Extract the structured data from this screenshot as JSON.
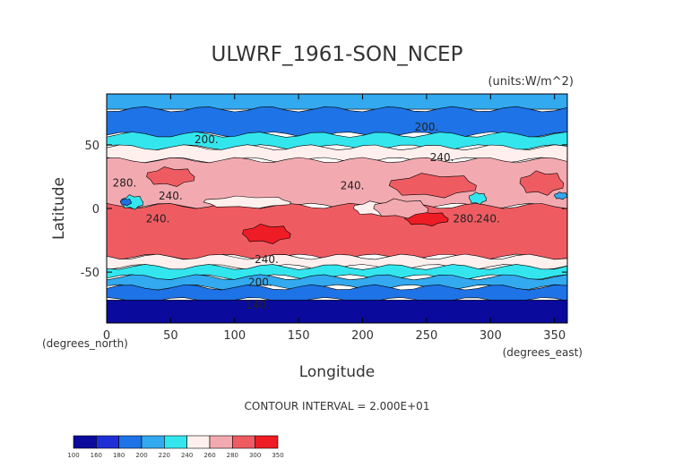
{
  "chart_data": {
    "type": "heatmap",
    "title": "ULWRF_1961-SON_NCEP",
    "units_label": "(units:W/m^2)",
    "xlabel": "Longitude",
    "ylabel": "Latitude",
    "x_unit_label": "(degrees_east)",
    "y_unit_label": "(degrees_north)",
    "xlim": [
      0,
      360
    ],
    "ylim": [
      -90,
      90
    ],
    "x_ticks": [
      0,
      50,
      100,
      150,
      200,
      250,
      300,
      350
    ],
    "y_ticks": [
      -50,
      0,
      50
    ],
    "contour_interval_text": "CONTOUR INTERVAL = 2.000E+01",
    "colorbar": {
      "levels": [
        100,
        160,
        180,
        200,
        220,
        240,
        260,
        280,
        300,
        350
      ],
      "colors": [
        "#0a0a9c",
        "#1f2fd6",
        "#1e73e6",
        "#33a9ef",
        "#33e6ee",
        "#fff0ee",
        "#f2aab0",
        "#ee5c62",
        "#ee1c24"
      ]
    },
    "contour_labels": [
      {
        "text": "200.",
        "lon": 78,
        "lat": 54
      },
      {
        "text": "200.",
        "lon": 250,
        "lat": 64
      },
      {
        "text": "240.",
        "lon": 262,
        "lat": 40
      },
      {
        "text": "280.",
        "lon": 14,
        "lat": 20
      },
      {
        "text": "240.",
        "lon": 50,
        "lat": 10
      },
      {
        "text": "240.",
        "lon": 192,
        "lat": 18
      },
      {
        "text": "240.",
        "lon": 40,
        "lat": -8
      },
      {
        "text": "280.",
        "lon": 280,
        "lat": -8
      },
      {
        "text": "240.",
        "lon": 298,
        "lat": -8
      },
      {
        "text": "240.",
        "lon": 125,
        "lat": -40
      },
      {
        "text": "200.",
        "lon": 120,
        "lat": -58
      },
      {
        "text": "140.",
        "lon": 118,
        "lat": -76
      }
    ],
    "bands": [
      {
        "lat_top": 90,
        "lat_bot": 78,
        "color": "#33a9ef"
      },
      {
        "lat_top": 78,
        "lat_bot": 58,
        "color": "#1e73e6"
      },
      {
        "lat_top": 58,
        "lat_bot": 48,
        "color": "#33e6ee"
      },
      {
        "lat_top": 48,
        "lat_bot": 38,
        "color": "#fff0ee"
      },
      {
        "lat_top": 38,
        "lat_bot": 2,
        "color": "#f2aab0"
      },
      {
        "lat_top": 2,
        "lat_bot": -38,
        "color": "#ee5c62"
      },
      {
        "lat_top": -38,
        "lat_bot": -46,
        "color": "#fff0ee"
      },
      {
        "lat_top": -46,
        "lat_bot": -54,
        "color": "#33e6ee"
      },
      {
        "lat_top": -54,
        "lat_bot": -62,
        "color": "#33a9ef"
      },
      {
        "lat_top": -62,
        "lat_bot": -72,
        "color": "#1e73e6"
      },
      {
        "lat_top": -72,
        "lat_bot": -90,
        "color": "#0a0a9c"
      }
    ],
    "patches": [
      {
        "lon": 50,
        "lat": 25,
        "rlon": 22,
        "rlat": 8,
        "color": "#ee5c62"
      },
      {
        "lon": 210,
        "lat": 0,
        "rlon": 20,
        "rlat": 6,
        "color": "#fff0ee"
      },
      {
        "lon": 255,
        "lat": 18,
        "rlon": 40,
        "rlat": 10,
        "color": "#ee5c62"
      },
      {
        "lon": 340,
        "lat": 20,
        "rlon": 20,
        "rlat": 10,
        "color": "#ee5c62"
      },
      {
        "lon": 125,
        "lat": -20,
        "rlon": 22,
        "rlat": 8,
        "color": "#ee1c24"
      },
      {
        "lon": 250,
        "lat": -8,
        "rlon": 20,
        "rlat": 6,
        "color": "#ee1c24"
      },
      {
        "lon": 20,
        "lat": 5,
        "rlon": 10,
        "rlat": 6,
        "color": "#33e6ee"
      },
      {
        "lon": 15,
        "lat": 5,
        "rlon": 5,
        "rlat": 3,
        "color": "#1e73e6"
      },
      {
        "lon": 290,
        "lat": 8,
        "rlon": 8,
        "rlat": 5,
        "color": "#33e6ee"
      },
      {
        "lon": 355,
        "lat": 10,
        "rlon": 6,
        "rlat": 3,
        "color": "#33a9ef"
      },
      {
        "lon": 230,
        "lat": 0,
        "rlon": 25,
        "rlat": 8,
        "color": "#f2aab0"
      },
      {
        "lon": 110,
        "lat": 5,
        "rlon": 40,
        "rlat": 5,
        "color": "#fff0ee"
      }
    ]
  }
}
